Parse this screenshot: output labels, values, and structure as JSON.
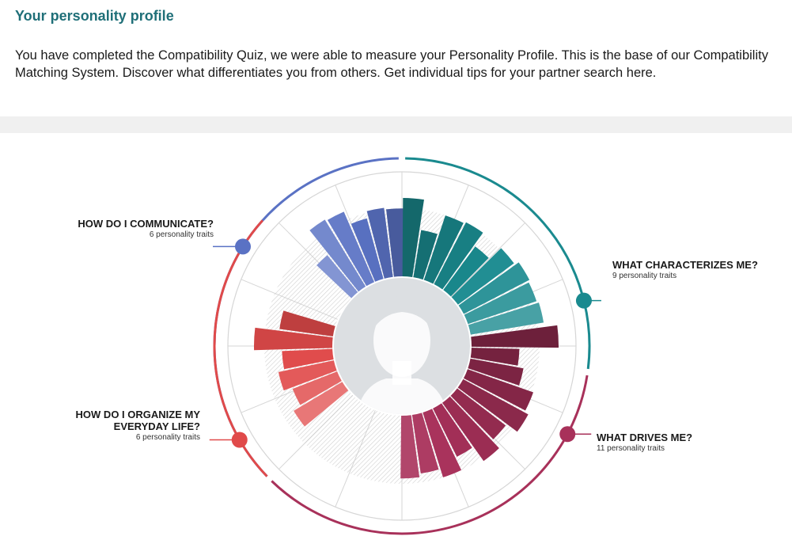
{
  "header": {
    "title": "Your personality profile",
    "intro": "You have completed the Compatibility Quiz, we were able to measure your Personality Profile. This is the base of our Compatibility Matching System. Discover what differentiates you from others. Get individual tips for your partner search here."
  },
  "colors": {
    "title": "#1f6f78",
    "communicate": "#5a72c4",
    "characterizes": "#1a8a8f",
    "drives": "#a8315a",
    "organize": "#e04a4a"
  },
  "segments": [
    {
      "id": "communicate",
      "title": "HOW DO I COMMUNICATE?",
      "subtitle": "6 personality traits",
      "color": "#5a72c4",
      "values": [
        0.55,
        0.9,
        0.88,
        0.72,
        0.8,
        0.78
      ]
    },
    {
      "id": "characterizes",
      "title": "WHAT CHARACTERIZES ME?",
      "subtitle": "9 personality traits",
      "color": "#1a8a8f",
      "values": [
        0.9,
        0.55,
        0.78,
        0.8,
        0.62,
        0.8,
        0.85,
        0.83,
        0.85
      ]
    },
    {
      "id": "drives",
      "title": "WHAT DRIVES ME?",
      "subtitle": "11 personality traits",
      "color": "#a8315a",
      "values": [
        1.0,
        0.55,
        0.62,
        0.8,
        0.85,
        0.7,
        0.82,
        0.62,
        0.78,
        0.68,
        0.72
      ]
    },
    {
      "id": "organize",
      "title": "HOW DO I ORGANIZE MY EVERYDAY LIFE?",
      "subtitle": "6 personality traits",
      "color": "#e04a4a",
      "values": [
        0.65,
        0.55,
        0.65,
        0.58,
        0.9,
        0.62
      ]
    }
  ],
  "avatar": {
    "icon": "person-silhouette-icon"
  }
}
